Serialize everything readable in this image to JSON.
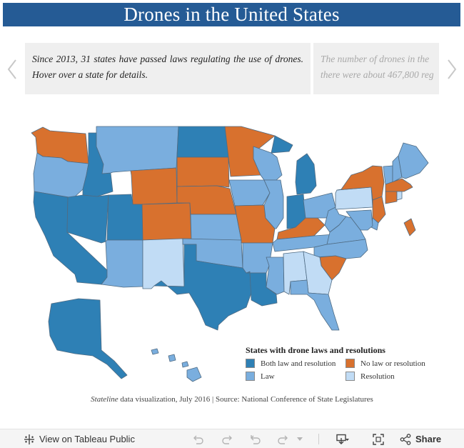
{
  "title": "Drones in the United States",
  "story": {
    "active_text": "Since 2013, 31 states have passed laws regulating the use of drones. Hover over a state for details.",
    "next_line1": "The number of drones in the",
    "next_line2": "there were about 467,800 reg"
  },
  "legend": {
    "title": "States with drone laws and resolutions",
    "items": [
      {
        "label": "Both law and resolution",
        "color": "#2e80b5"
      },
      {
        "label": "No law or resolution",
        "color": "#d8712e"
      },
      {
        "label": "Law",
        "color": "#7aaede"
      },
      {
        "label": "Resolution",
        "color": "#c1dcf5"
      }
    ]
  },
  "caption": {
    "source_italic": "Stateline",
    "source_rest": " data visualization, July 2016 | Source: National Conference of State Legislatures"
  },
  "toolbar": {
    "view_label": "View on Tableau Public",
    "share_label": "Share"
  },
  "map_states": {
    "WA": "No law or resolution",
    "OR": "Law",
    "CA": "Both law and resolution",
    "ID": "Both law and resolution",
    "NV": "Both law and resolution",
    "MT": "Law",
    "WY": "No law or resolution",
    "UT": "Both law and resolution",
    "AZ": "Law",
    "CO": "No law or resolution",
    "NM": "Resolution",
    "ND": "Both law and resolution",
    "SD": "No law or resolution",
    "NE": "No law or resolution",
    "KS": "Law",
    "OK": "Law",
    "TX": "Both law and resolution",
    "MN": "No law or resolution",
    "IA": "Law",
    "MO": "No law or resolution",
    "AR": "Law",
    "LA": "Both law and resolution",
    "WI": "Law",
    "IL": "Law",
    "MS": "Law",
    "MI": "Both law and resolution",
    "IN": "Both law and resolution",
    "KY": "No law or resolution",
    "TN": "Law",
    "AL": "Resolution",
    "OH": "Law",
    "WV": "Law",
    "VA": "Law",
    "NC": "Law",
    "SC": "No law or resolution",
    "GA": "Resolution",
    "FL": "Law",
    "PA": "Resolution",
    "NY": "No law or resolution",
    "VT": "Law",
    "NH": "Law",
    "ME": "Law",
    "MA": "No law or resolution",
    "CT": "No law or resolution",
    "RI": "Resolution",
    "NJ": "No law or resolution",
    "DE": "Law",
    "MD": "Law",
    "DC": "No law or resolution",
    "AK": "Both law and resolution",
    "HI": "Law"
  }
}
